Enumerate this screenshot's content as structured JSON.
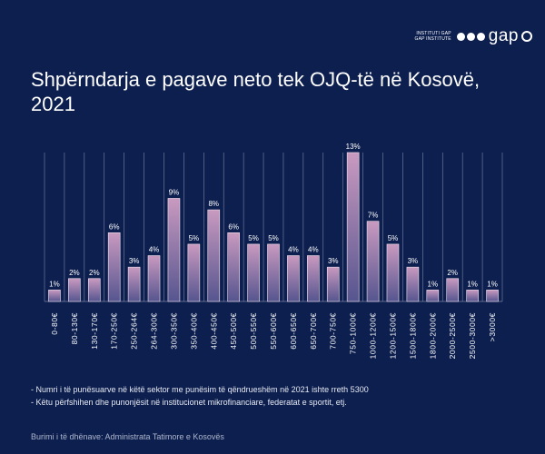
{
  "logo": {
    "line1": "INSTITUTI GAP",
    "line2": "GAP INSTITUTE",
    "word": "gap"
  },
  "title": "Shpërndarja e pagave neto tek OJQ-të në Kosovë, 2021",
  "notes": [
    "- Numri i të punësuarve në këtë sektor me punësim të qëndrueshëm në 2021 ishte rreth 5300",
    "- Këtu përfshihen dhe punonjësit në institucionet mikrofinanciare, federatat e sportit, etj."
  ],
  "source": "Burimi i të dhënave: Administrata Tatimore e Kosovës",
  "colors": {
    "background": "#0d1f4f",
    "bar_top": "#c99ac0",
    "bar_bottom": "#56558f",
    "bar_border": "#f0e2ec",
    "grid": "#7c86a8"
  },
  "chart_data": {
    "type": "bar",
    "categories": [
      "0-80€",
      "80-130€",
      "130-170€",
      "170-250€",
      "250-264€",
      "264-300€",
      "300-350€",
      "350-400€",
      "400-450€",
      "450-500€",
      "500-550€",
      "550-600€",
      "600-650€",
      "650-700€",
      "700-750€",
      "750-1000€",
      "1000-1200€",
      "1200-1500€",
      "1500-1800€",
      "1800-2000€",
      "2000-2500€",
      "2500-3000€",
      ">3000€"
    ],
    "values": [
      1,
      2,
      2,
      6,
      3,
      4,
      9,
      5,
      8,
      6,
      5,
      5,
      4,
      4,
      3,
      13,
      7,
      5,
      3,
      1,
      2,
      1,
      1
    ],
    "labels": [
      "1%",
      "2%",
      "2%",
      "6%",
      "3%",
      "4%",
      "9%",
      "5%",
      "8%",
      "6%",
      "5%",
      "5%",
      "4%",
      "4%",
      "3%",
      "13%",
      "7%",
      "5%",
      "3%",
      "1%",
      "2%",
      "1%",
      "1%"
    ],
    "ylim": [
      0,
      13
    ],
    "grid": true,
    "xlabel": "",
    "ylabel": ""
  }
}
